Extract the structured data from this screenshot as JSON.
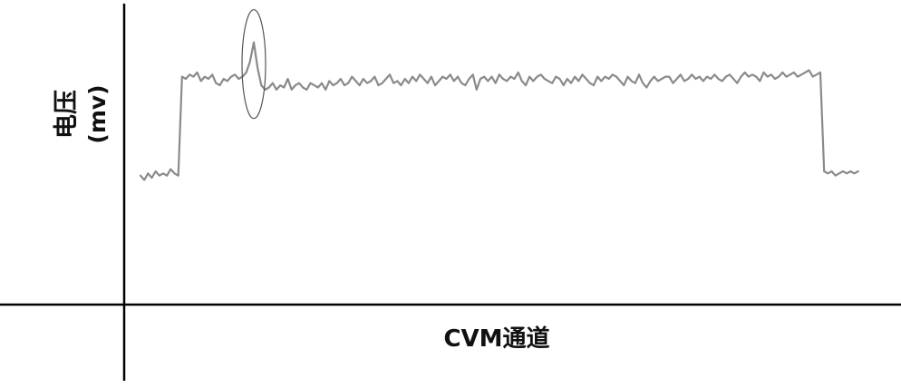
{
  "chart_data": {
    "type": "line",
    "title": "",
    "xlabel": "CVM通道",
    "ylabel": "电压",
    "ylabel_unit": "(mv)",
    "grid": false,
    "legend": "none",
    "colors": {
      "series": "#8a8a8a",
      "axes": "#000000"
    },
    "series": [
      {
        "values": [
          20,
          18,
          21,
          19,
          22,
          20,
          21,
          20,
          23,
          21,
          20,
          66,
          65,
          67,
          66,
          68,
          64,
          66,
          65,
          67,
          63,
          62,
          65,
          64,
          66,
          67,
          65,
          66,
          68,
          73,
          82,
          70,
          62,
          60,
          61,
          63,
          60,
          62,
          61,
          65,
          60,
          62,
          63,
          61,
          60,
          63,
          62,
          61,
          63,
          60,
          64,
          62,
          63,
          65,
          62,
          63,
          66,
          64,
          62,
          65,
          63,
          64,
          66,
          62,
          63,
          65,
          67,
          63,
          64,
          62,
          65,
          63,
          66,
          64,
          67,
          65,
          63,
          66,
          62,
          64,
          66,
          65,
          67,
          64,
          66,
          63,
          62,
          65,
          67,
          60,
          65,
          66,
          64,
          66,
          63,
          67,
          65,
          64,
          66,
          65,
          68,
          64,
          62,
          66,
          64,
          66,
          67,
          65,
          64,
          63,
          66,
          65,
          62,
          65,
          63,
          66,
          64,
          67,
          65,
          63,
          62,
          66,
          64,
          66,
          65,
          67,
          66,
          64,
          62,
          66,
          64,
          63,
          67,
          63,
          61,
          64,
          66,
          64,
          65,
          66,
          66,
          63,
          65,
          67,
          64,
          65,
          67,
          65,
          66,
          64,
          66,
          65,
          67,
          65,
          64,
          66,
          67,
          65,
          63,
          66,
          68,
          66,
          67,
          66,
          64,
          68,
          66,
          67,
          65,
          66,
          68,
          66,
          67,
          68,
          66,
          67,
          68,
          69,
          66,
          67,
          68,
          22,
          21,
          22,
          20,
          21,
          22,
          21,
          22,
          21,
          22
        ]
      }
    ],
    "xlim": [
      0,
      180
    ],
    "ylim": [
      -40,
      100
    ],
    "highlight": {
      "x": 30,
      "y": 82,
      "shape": "ellipse",
      "note_text": ""
    }
  }
}
